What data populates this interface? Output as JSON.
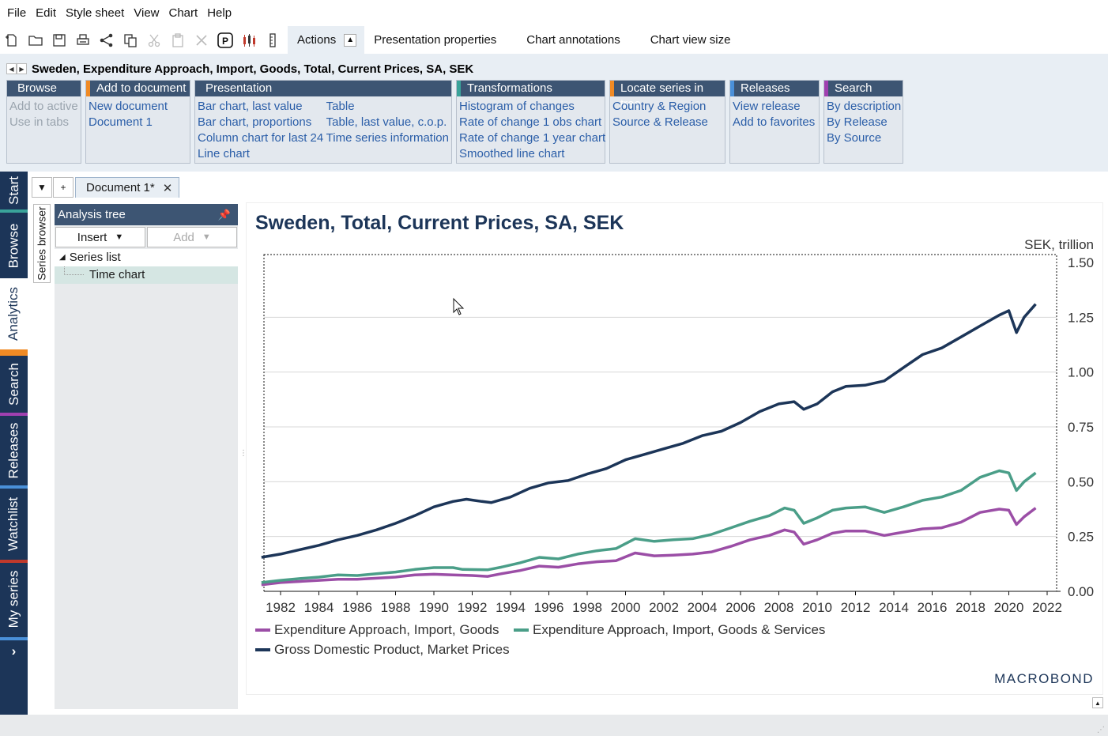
{
  "menu": [
    "File",
    "Edit",
    "Style sheet",
    "View",
    "Chart",
    "Help"
  ],
  "toolbar": {
    "icons": [
      "new-document-icon",
      "open-icon",
      "save-icon",
      "print-icon",
      "share-icon",
      "copy-icon",
      "cut-icon",
      "paste-icon",
      "delete-icon",
      "presentation-icon",
      "candlestick-icon",
      "ruler-icon"
    ],
    "tabs": [
      "Actions",
      "Presentation properties",
      "Chart annotations",
      "Chart view size"
    ]
  },
  "series_title": "Sweden, Expenditure Approach, Import, Goods, Total, Current Prices, SA, SEK",
  "groups": {
    "browse": {
      "title": "Browse",
      "items": [
        "Add to active",
        "Use in tabs"
      ]
    },
    "add_to_document": {
      "title": "Add to document",
      "items": [
        "New document",
        "Document 1"
      ]
    },
    "presentation": {
      "title": "Presentation",
      "col1": [
        "Bar chart, last value",
        "Bar chart, proportions",
        "Column chart for last 24",
        "Line chart"
      ],
      "col2": [
        "Table",
        "Table, last value, c.o.p.",
        "Time series information"
      ]
    },
    "transformations": {
      "title": "Transformations",
      "items": [
        "Histogram of changes",
        "Rate of change 1 obs chart",
        "Rate of change 1 year chart",
        "Smoothed line chart"
      ]
    },
    "locate": {
      "title": "Locate series in tree",
      "items": [
        "Country & Region",
        "Source & Release"
      ]
    },
    "releases": {
      "title": "Releases",
      "items": [
        "View release",
        "Add to favorites"
      ]
    },
    "search": {
      "title": "Search",
      "items": [
        "By description",
        "By Release",
        "By Source"
      ]
    }
  },
  "side_nav": [
    "Start",
    "Browse",
    "Analytics",
    "Search",
    "Releases",
    "Watchlist",
    "My series"
  ],
  "document_tab": "Document 1*",
  "series_browser_label": "Series browser",
  "tree": {
    "title": "Analysis tree",
    "insert_label": "Insert",
    "add_label": "Add",
    "items": [
      "Series list",
      "Time chart"
    ]
  },
  "chart_data": {
    "type": "line",
    "title": "Sweden, Total, Current Prices, SA, SEK",
    "ylabel": "SEK, trillion",
    "ylim": [
      0,
      1.5
    ],
    "yticks": [
      "0.00",
      "0.25",
      "0.50",
      "0.75",
      "1.00",
      "1.25",
      "1.50"
    ],
    "xlim": [
      1981.0,
      2022.4
    ],
    "xticks": [
      "1982",
      "1984",
      "1986",
      "1988",
      "1990",
      "1992",
      "1994",
      "1996",
      "1998",
      "2000",
      "2002",
      "2004",
      "2006",
      "2008",
      "2010",
      "2012",
      "2014",
      "2016",
      "2018",
      "2020",
      "2022"
    ],
    "legend_position": "bottom-left",
    "branding": "MACROBOND",
    "series": [
      {
        "name": "Expenditure Approach, Import, Goods",
        "color": "#9b4ea6",
        "points": [
          [
            1981.0,
            0.03
          ],
          [
            1982.0,
            0.04
          ],
          [
            1983.0,
            0.045
          ],
          [
            1984.0,
            0.05
          ],
          [
            1985.0,
            0.055
          ],
          [
            1986.0,
            0.055
          ],
          [
            1987.0,
            0.06
          ],
          [
            1988.0,
            0.065
          ],
          [
            1989.0,
            0.075
          ],
          [
            1990.0,
            0.078
          ],
          [
            1991.0,
            0.075
          ],
          [
            1992.0,
            0.072
          ],
          [
            1992.8,
            0.068
          ],
          [
            1993.5,
            0.08
          ],
          [
            1994.5,
            0.095
          ],
          [
            1995.5,
            0.115
          ],
          [
            1996.5,
            0.11
          ],
          [
            1997.5,
            0.125
          ],
          [
            1998.5,
            0.135
          ],
          [
            1999.5,
            0.14
          ],
          [
            2000.5,
            0.175
          ],
          [
            2001.5,
            0.162
          ],
          [
            2002.5,
            0.165
          ],
          [
            2003.5,
            0.17
          ],
          [
            2004.5,
            0.18
          ],
          [
            2005.5,
            0.205
          ],
          [
            2006.5,
            0.235
          ],
          [
            2007.5,
            0.255
          ],
          [
            2008.3,
            0.28
          ],
          [
            2008.8,
            0.27
          ],
          [
            2009.3,
            0.215
          ],
          [
            2010.0,
            0.235
          ],
          [
            2010.8,
            0.265
          ],
          [
            2011.5,
            0.275
          ],
          [
            2012.5,
            0.275
          ],
          [
            2013.5,
            0.255
          ],
          [
            2014.5,
            0.27
          ],
          [
            2015.5,
            0.285
          ],
          [
            2016.5,
            0.29
          ],
          [
            2017.5,
            0.315
          ],
          [
            2018.5,
            0.36
          ],
          [
            2019.5,
            0.375
          ],
          [
            2020.0,
            0.37
          ],
          [
            2020.4,
            0.305
          ],
          [
            2020.8,
            0.34
          ],
          [
            2021.4,
            0.38
          ]
        ]
      },
      {
        "name": "Expenditure Approach, Import, Goods & Services",
        "color": "#4a9e88",
        "points": [
          [
            1981.0,
            0.04
          ],
          [
            1982.0,
            0.05
          ],
          [
            1983.0,
            0.058
          ],
          [
            1984.0,
            0.065
          ],
          [
            1985.0,
            0.075
          ],
          [
            1986.0,
            0.072
          ],
          [
            1987.0,
            0.08
          ],
          [
            1988.0,
            0.088
          ],
          [
            1989.0,
            0.1
          ],
          [
            1990.0,
            0.108
          ],
          [
            1991.0,
            0.108
          ],
          [
            1991.5,
            0.1
          ],
          [
            1992.8,
            0.098
          ],
          [
            1993.5,
            0.11
          ],
          [
            1994.5,
            0.13
          ],
          [
            1995.5,
            0.155
          ],
          [
            1996.5,
            0.148
          ],
          [
            1997.5,
            0.17
          ],
          [
            1998.5,
            0.185
          ],
          [
            1999.5,
            0.195
          ],
          [
            2000.5,
            0.24
          ],
          [
            2001.5,
            0.228
          ],
          [
            2002.5,
            0.235
          ],
          [
            2003.5,
            0.24
          ],
          [
            2004.5,
            0.26
          ],
          [
            2005.5,
            0.29
          ],
          [
            2006.5,
            0.32
          ],
          [
            2007.5,
            0.345
          ],
          [
            2008.3,
            0.38
          ],
          [
            2008.8,
            0.37
          ],
          [
            2009.3,
            0.31
          ],
          [
            2010.0,
            0.335
          ],
          [
            2010.8,
            0.37
          ],
          [
            2011.5,
            0.38
          ],
          [
            2012.5,
            0.385
          ],
          [
            2013.5,
            0.36
          ],
          [
            2014.5,
            0.385
          ],
          [
            2015.5,
            0.415
          ],
          [
            2016.5,
            0.43
          ],
          [
            2017.5,
            0.46
          ],
          [
            2018.5,
            0.52
          ],
          [
            2019.5,
            0.55
          ],
          [
            2020.0,
            0.54
          ],
          [
            2020.4,
            0.46
          ],
          [
            2020.8,
            0.5
          ],
          [
            2021.4,
            0.54
          ]
        ]
      },
      {
        "name": "Gross Domestic Product, Market Prices",
        "color": "#1c3558",
        "points": [
          [
            1981.0,
            0.155
          ],
          [
            1982.0,
            0.17
          ],
          [
            1983.0,
            0.19
          ],
          [
            1984.0,
            0.21
          ],
          [
            1985.0,
            0.235
          ],
          [
            1986.0,
            0.255
          ],
          [
            1987.0,
            0.28
          ],
          [
            1988.0,
            0.31
          ],
          [
            1989.0,
            0.345
          ],
          [
            1990.0,
            0.385
          ],
          [
            1991.0,
            0.41
          ],
          [
            1991.7,
            0.42
          ],
          [
            1992.5,
            0.41
          ],
          [
            1993.0,
            0.405
          ],
          [
            1994.0,
            0.43
          ],
          [
            1995.0,
            0.47
          ],
          [
            1996.0,
            0.495
          ],
          [
            1997.0,
            0.505
          ],
          [
            1998.0,
            0.535
          ],
          [
            1999.0,
            0.56
          ],
          [
            2000.0,
            0.6
          ],
          [
            2001.0,
            0.625
          ],
          [
            2002.0,
            0.65
          ],
          [
            2003.0,
            0.675
          ],
          [
            2004.0,
            0.71
          ],
          [
            2005.0,
            0.73
          ],
          [
            2006.0,
            0.77
          ],
          [
            2007.0,
            0.82
          ],
          [
            2008.0,
            0.855
          ],
          [
            2008.8,
            0.865
          ],
          [
            2009.3,
            0.83
          ],
          [
            2010.0,
            0.855
          ],
          [
            2010.8,
            0.91
          ],
          [
            2011.5,
            0.935
          ],
          [
            2012.5,
            0.94
          ],
          [
            2013.5,
            0.96
          ],
          [
            2014.5,
            1.02
          ],
          [
            2015.5,
            1.08
          ],
          [
            2016.5,
            1.11
          ],
          [
            2017.5,
            1.16
          ],
          [
            2018.5,
            1.21
          ],
          [
            2019.5,
            1.26
          ],
          [
            2020.0,
            1.28
          ],
          [
            2020.4,
            1.18
          ],
          [
            2020.8,
            1.25
          ],
          [
            2021.4,
            1.31
          ]
        ]
      }
    ]
  }
}
